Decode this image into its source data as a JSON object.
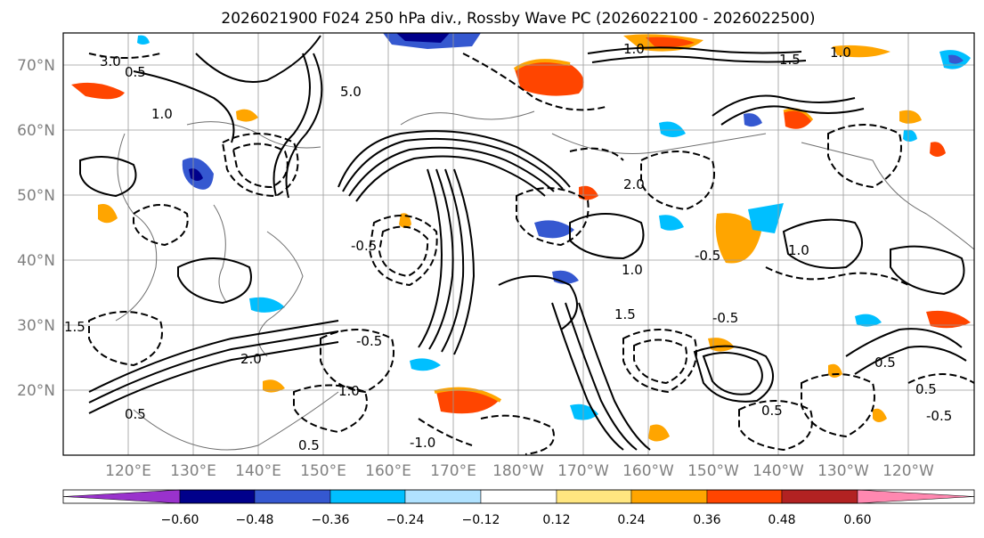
{
  "title": "2026021900 F024 250 hPa div., Rossby Wave PC (2026022100 - 2026022500)",
  "lat_labels": [
    "70°N",
    "60°N",
    "50°N",
    "40°N",
    "30°N",
    "20°N"
  ],
  "lon_labels": [
    "120°E",
    "130°E",
    "140°E",
    "150°E",
    "160°E",
    "170°E",
    "180°W",
    "170°W",
    "160°W",
    "150°W",
    "140°W",
    "130°W",
    "120°W"
  ],
  "colorbar": {
    "colors": [
      "#9932cc",
      "#00008b",
      "#3558d0",
      "#00bfff",
      "#b0e2ff",
      "#ffffff",
      "#ffe680",
      "#ffa500",
      "#ff4500",
      "#b22222",
      "#ff88b0"
    ],
    "tick_labels": [
      "−0.60",
      "−0.48",
      "−0.36",
      "−0.24",
      "−0.12",
      "0.12",
      "0.24",
      "0.36",
      "0.48",
      "0.60"
    ]
  },
  "contour_labels": [
    {
      "text": "3.0"
    },
    {
      "text": "0.5"
    },
    {
      "text": "1.0"
    },
    {
      "text": "5.0"
    },
    {
      "text": "1.5"
    },
    {
      "text": "1.0"
    },
    {
      "text": "1.0"
    },
    {
      "text": "2.0"
    },
    {
      "text": "0.5"
    },
    {
      "text": "2.0"
    },
    {
      "text": "1.0"
    },
    {
      "text": "-0.5"
    },
    {
      "text": "0.5"
    },
    {
      "text": "1.5"
    },
    {
      "text": "-0.5"
    },
    {
      "text": "-1.0"
    },
    {
      "text": "1.0"
    },
    {
      "text": "0.5"
    },
    {
      "text": "-0.5"
    },
    {
      "text": "1.0"
    },
    {
      "text": "0.5"
    },
    {
      "text": "0.5"
    },
    {
      "text": "-0.5"
    },
    {
      "text": "1.5"
    },
    {
      "text": "-0.5"
    }
  ],
  "colors": {
    "axis_text": "#808080",
    "grid": "#9a9a9a",
    "frame": "#000000"
  }
}
